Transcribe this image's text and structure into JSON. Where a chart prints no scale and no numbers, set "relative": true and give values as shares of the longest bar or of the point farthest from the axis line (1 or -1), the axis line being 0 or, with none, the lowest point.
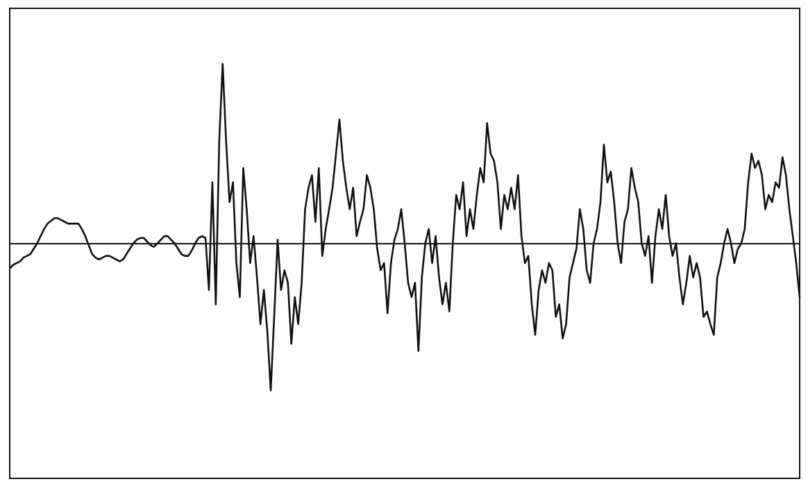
{
  "chart_data": {
    "type": "line",
    "relative": true,
    "line_style": "solid",
    "categories": [
      null,
      null,
      null,
      null,
      null,
      null,
      null,
      null,
      null,
      null,
      null,
      null,
      null,
      null,
      null,
      null,
      null,
      null,
      null,
      null,
      null,
      null,
      null,
      null,
      null,
      null,
      null,
      null,
      null,
      null,
      null,
      null,
      null,
      null,
      null,
      null,
      null,
      null,
      null,
      null,
      null,
      null,
      null,
      null,
      null,
      null,
      null,
      null,
      null,
      null,
      null,
      null,
      null,
      null,
      null,
      null,
      null,
      null,
      null,
      null,
      null,
      null,
      null,
      null,
      null,
      null,
      null,
      null,
      null,
      null,
      null,
      null,
      null,
      null,
      null,
      null,
      null,
      null,
      null,
      null,
      null,
      null,
      null,
      null,
      null,
      null,
      null,
      null,
      null,
      null,
      null,
      null,
      null,
      null,
      null,
      null,
      null,
      null,
      null,
      null,
      null,
      null,
      null,
      null,
      null,
      null,
      null,
      null,
      null,
      null,
      null,
      null,
      null,
      null,
      null,
      null,
      null,
      null,
      null,
      null,
      null,
      null,
      null,
      null,
      null,
      null,
      null,
      null,
      null,
      null,
      null,
      null,
      null,
      null,
      null,
      null,
      null,
      null,
      null,
      null,
      null,
      null,
      null,
      null,
      null,
      null,
      null,
      null,
      null,
      null,
      null,
      null,
      null,
      null,
      null,
      null,
      null,
      null,
      null,
      null,
      null,
      null,
      null,
      null,
      null,
      null,
      null,
      null,
      null,
      null,
      null,
      null,
      null,
      null,
      null,
      null,
      null,
      null,
      null,
      null,
      null,
      null,
      null,
      null,
      null,
      null,
      null,
      null,
      null,
      null,
      null,
      null,
      null,
      null,
      null,
      null,
      null,
      null,
      null,
      null,
      null,
      null,
      null,
      null,
      null,
      null,
      null,
      null,
      null,
      null,
      null,
      null,
      null,
      null,
      null,
      null,
      null,
      null,
      null,
      null,
      null,
      null,
      null,
      null,
      null,
      null,
      null,
      null,
      null,
      null,
      null
    ],
    "series": [
      {
        "color": "#111111",
        "values": [
          -0.14,
          -0.12,
          -0.11,
          -0.1,
          -0.08,
          -0.07,
          -0.06,
          -0.03,
          0.0,
          0.04,
          0.08,
          0.11,
          0.125,
          0.14,
          0.14,
          0.13,
          0.12,
          0.11,
          0.11,
          0.11,
          0.11,
          0.08,
          0.04,
          -0.01,
          -0.06,
          -0.08,
          -0.09,
          -0.08,
          -0.07,
          -0.07,
          -0.08,
          -0.09,
          -0.1,
          -0.09,
          -0.06,
          -0.03,
          0,
          0.02,
          0.03,
          0.03,
          0.01,
          -0.01,
          -0.02,
          0,
          0.02,
          0.04,
          0.04,
          0.02,
          0,
          -0.03,
          -0.06,
          -0.07,
          -0.07,
          -0.04,
          0,
          0.03,
          0.04,
          0.03,
          -0.26,
          0.34,
          -0.34,
          0.57,
          1.0,
          0.57,
          0.23,
          0.34,
          -0.11,
          -0.3,
          0.42,
          0.19,
          -0.11,
          0.04,
          -0.19,
          -0.45,
          -0.26,
          -0.49,
          -0.82,
          -0.41,
          0.02,
          -0.26,
          -0.15,
          -0.22,
          -0.56,
          -0.3,
          -0.45,
          -0.22,
          0.19,
          0.31,
          0.38,
          0.12,
          0.42,
          -0.07,
          0.08,
          0.19,
          0.31,
          0.5,
          0.69,
          0.46,
          0.31,
          0.19,
          0.31,
          0.04,
          0.12,
          0.19,
          0.38,
          0.31,
          0.19,
          -0.03,
          -0.15,
          -0.11,
          -0.39,
          -0.11,
          0.02,
          0.08,
          0.19,
          0,
          -0.22,
          -0.3,
          -0.22,
          -0.6,
          -0.19,
          0,
          0.08,
          -0.11,
          0.04,
          -0.19,
          -0.34,
          -0.22,
          -0.38,
          0,
          0.27,
          0.19,
          0.34,
          0.04,
          0.19,
          0.08,
          0.27,
          0.42,
          0.34,
          0.67,
          0.5,
          0.46,
          0.34,
          0.08,
          0.27,
          0.19,
          0.31,
          0.19,
          0.38,
          0.04,
          -0.11,
          -0.07,
          -0.34,
          -0.51,
          -0.26,
          -0.15,
          -0.22,
          -0.11,
          -0.15,
          -0.41,
          -0.34,
          -0.53,
          -0.45,
          -0.19,
          -0.11,
          -0.03,
          0.19,
          0.08,
          -0.15,
          -0.22,
          0,
          0.08,
          0.23,
          0.55,
          0.34,
          0.4,
          0.23,
          0,
          -0.11,
          0.12,
          0.19,
          0.42,
          0.31,
          0.23,
          0,
          -0.07,
          0.04,
          -0.22,
          0.04,
          0.19,
          0.08,
          0.27,
          0.04,
          -0.07,
          0,
          -0.19,
          -0.34,
          -0.22,
          -0.07,
          -0.19,
          -0.11,
          -0.19,
          -0.41,
          -0.38,
          -0.45,
          -0.51,
          -0.19,
          -0.11,
          0,
          0.08,
          0,
          -0.11,
          -0.03,
          0,
          0.08,
          0.34,
          0.5,
          0.42,
          0.46,
          0.38,
          0.19,
          0.27,
          0.23,
          0.34,
          0.31,
          0.48,
          0.38,
          0.19,
          0.04,
          -0.11,
          -0.3
        ]
      }
    ]
  }
}
